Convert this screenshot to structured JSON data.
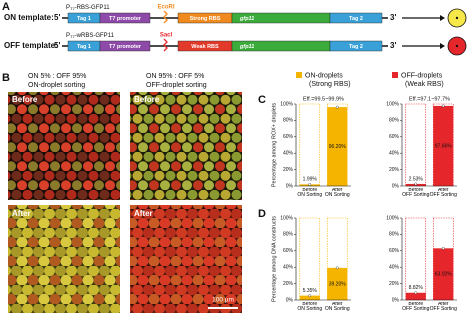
{
  "panels": {
    "a": "A",
    "b": "B",
    "c": "C",
    "d": "D"
  },
  "templates": [
    {
      "label": "ON template:",
      "promoter_name": {
        "base": "P",
        "sub": "T7",
        "rest": "-RBS-GFP11"
      },
      "site": "EcoRI",
      "five": "5'",
      "three": "3'",
      "parts": [
        "Tag 1",
        "T7 promoter",
        "Strong RBS",
        "gfp11",
        "Tag 2"
      ]
    },
    {
      "label": "OFF template:",
      "promoter_name": {
        "base": "P",
        "sub": "T7",
        "rest": "-wRBS-GFP11"
      },
      "site": "SacI",
      "five": "5'",
      "three": "3'",
      "parts": [
        "Tag 1",
        "T7 promoter",
        "Weak RBS",
        "gfp11",
        "Tag 2"
      ]
    }
  ],
  "sorting": [
    {
      "ratio": "ON 5% : OFF 95%",
      "mode": "ON-droplet sorting"
    },
    {
      "ratio": "ON 95% : OFF 5%",
      "mode": "OFF-droplet sorting"
    }
  ],
  "images": {
    "before": "Before",
    "after": "After",
    "scale_bar": "100 µm"
  },
  "legend": [
    {
      "name": "ON-droplets",
      "detail": "(Strong RBS)",
      "color": "#f5b400"
    },
    {
      "name": "OFF-droplets",
      "detail": "(Weak RBS)",
      "color": "#e5262b"
    }
  ],
  "chart_data": [
    {
      "type": "bar",
      "ylabel": "Percentage among ROX+ droplets",
      "annotation": "Eff.=99.5~99.9%",
      "categories": [
        "Before\nON Sorting",
        "After\nON Sorting"
      ],
      "values": [
        1.99,
        96.2
      ],
      "value_labels": [
        "1.99%",
        "96.20%"
      ],
      "color": "#f5b400",
      "ylim": [
        0,
        100
      ],
      "yticks": [
        {
          "value": 0,
          "label": "0%"
        },
        {
          "value": 20,
          "label": "20%"
        },
        {
          "value": 40,
          "label": "40%"
        },
        {
          "value": 60,
          "label": "60%"
        },
        {
          "value": 80,
          "label": "80%"
        },
        {
          "value": 100,
          "label": "100%"
        }
      ]
    },
    {
      "type": "bar",
      "annotation": "Eff.=97.1~97.7%",
      "categories": [
        "Before\nOFF Sorting",
        "After\nOFF Sorting"
      ],
      "values": [
        2.53,
        97.66
      ],
      "value_labels": [
        "2.53%",
        "97.66%"
      ],
      "color": "#e5262b",
      "ylim": [
        0,
        100
      ],
      "yticks": [
        {
          "value": 0,
          "label": "0%"
        },
        {
          "value": 20,
          "label": "20%"
        },
        {
          "value": 40,
          "label": "40%"
        },
        {
          "value": 60,
          "label": "60%"
        },
        {
          "value": 80,
          "label": "80%"
        },
        {
          "value": 100,
          "label": "100%"
        }
      ]
    },
    {
      "type": "bar",
      "ylabel": "Percentage among DNA constructs",
      "categories": [
        "Before\nON Sorting",
        "After\nON Sorting"
      ],
      "values": [
        5.35,
        39.2
      ],
      "value_labels": [
        "5.35%",
        "39.20%"
      ],
      "color": "#f5b400",
      "ylim": [
        0,
        100
      ],
      "yticks": [
        {
          "value": 0,
          "label": "0%"
        },
        {
          "value": 20,
          "label": "20%"
        },
        {
          "value": 40,
          "label": "40%"
        },
        {
          "value": 60,
          "label": "60%"
        },
        {
          "value": 80,
          "label": "80%"
        },
        {
          "value": 100,
          "label": "100%"
        }
      ]
    },
    {
      "type": "bar",
      "categories": [
        "Before\nOFF Sorting",
        "After\nOFF Sorting"
      ],
      "values": [
        8.82,
        63.02
      ],
      "value_labels": [
        "8.82%",
        "63.02%"
      ],
      "color": "#e5262b",
      "ylim": [
        0,
        100
      ],
      "yticks": [
        {
          "value": 0,
          "label": "0%"
        },
        {
          "value": 20,
          "label": "20%"
        },
        {
          "value": 40,
          "label": "40%"
        },
        {
          "value": 60,
          "label": "60%"
        },
        {
          "value": 80,
          "label": "80%"
        },
        {
          "value": 100,
          "label": "100%"
        }
      ]
    }
  ]
}
